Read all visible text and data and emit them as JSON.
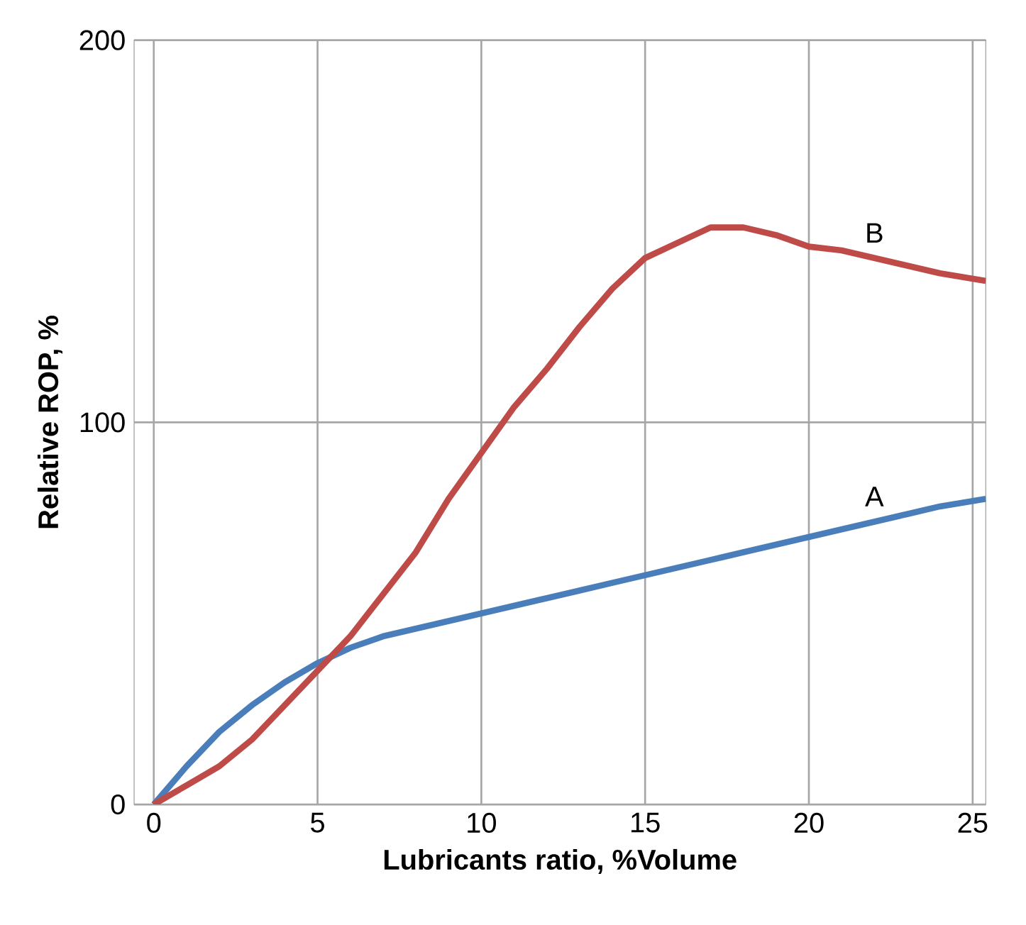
{
  "chart_data": {
    "type": "line",
    "xlabel": "Lubricants ratio, %Volume",
    "ylabel": "Relative ROP, %",
    "xlim": [
      -0.6,
      25.4
    ],
    "ylim": [
      0,
      200
    ],
    "xticks": [
      0,
      5,
      10,
      15,
      20,
      25
    ],
    "yticks": [
      0,
      100,
      200
    ],
    "grid": true,
    "marker": "none",
    "line_style": "solid",
    "series": [
      {
        "color": "#4a7ebb",
        "x": [
          0,
          1,
          2,
          3,
          4,
          5,
          6,
          7,
          8,
          9,
          10,
          11,
          12,
          13,
          14,
          15,
          16,
          17,
          18,
          19,
          20,
          21,
          22,
          23,
          24,
          25.4
        ],
        "values": [
          0,
          10,
          19,
          26,
          32,
          37,
          41,
          44,
          46,
          48,
          50,
          52,
          54,
          56,
          58,
          60,
          62,
          64,
          66,
          68,
          70,
          72,
          74,
          76,
          78,
          80
        ]
      },
      {
        "color": "#be4b48",
        "x": [
          0,
          1,
          2,
          3,
          4,
          5,
          6,
          7,
          8,
          9,
          10,
          11,
          12,
          13,
          14,
          15,
          16,
          17,
          18,
          19,
          20,
          21,
          22,
          23,
          24,
          25.4
        ],
        "values": [
          0,
          5,
          10,
          17,
          26,
          35,
          44,
          55,
          66,
          80,
          92,
          104,
          114,
          125,
          135,
          143,
          147,
          151,
          151,
          149,
          146,
          145,
          143,
          141,
          139,
          137
        ]
      }
    ],
    "annotations": [
      "A",
      "B"
    ]
  }
}
